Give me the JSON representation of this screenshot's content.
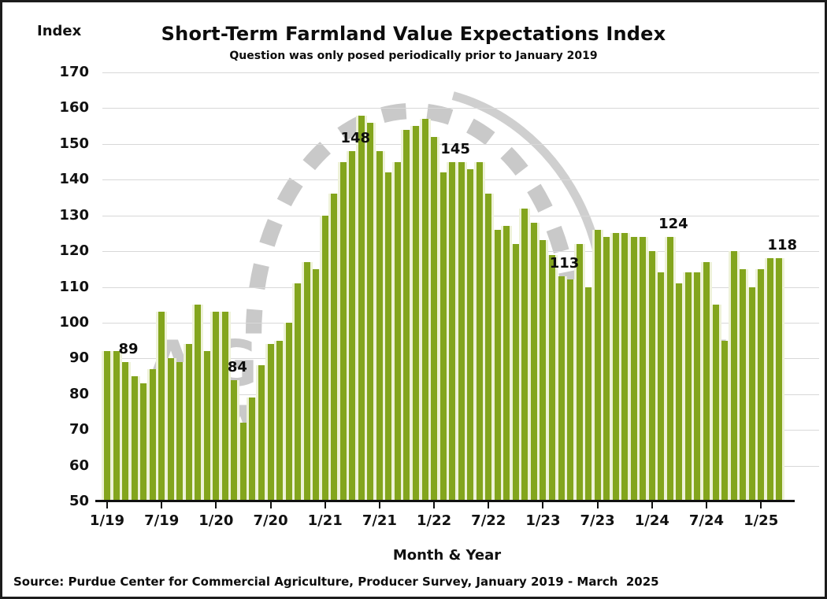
{
  "title": "Short-Term Farmland Value Expectations Index",
  "subtitle": "Question was only posed periodically prior to January 2019",
  "y_axis": {
    "label": "Index",
    "min": 50,
    "max": 170,
    "ticks": [
      170,
      160,
      150,
      140,
      130,
      120,
      110,
      100,
      90,
      80,
      70,
      60,
      50
    ]
  },
  "x_axis": {
    "label": "Month & Year",
    "tick_labels": [
      "1/19",
      "7/19",
      "1/20",
      "7/20",
      "1/21",
      "7/21",
      "1/22",
      "7/22",
      "1/23",
      "7/23",
      "1/24",
      "7/24",
      "1/25"
    ],
    "tick_month_indices": [
      0,
      6,
      12,
      18,
      24,
      30,
      36,
      42,
      48,
      54,
      60,
      66,
      72
    ]
  },
  "source": "Source: Purdue Center for Commercial Agriculture, Producer Survey, January 2019 - March  2025",
  "watermark": {
    "line1": "AG ECONOMY",
    "line2": "BAROMETER"
  },
  "colors": {
    "bar": "#83a51d",
    "grid": "#d8d8d8",
    "axis": "#111111",
    "watermark": "#c9c9c9",
    "text": "#0d0d0d"
  },
  "chart_data": {
    "type": "bar",
    "title": "Short-Term Farmland Value Expectations Index",
    "xlabel": "Month & Year",
    "ylabel": "Index",
    "ylim": [
      50,
      170
    ],
    "grid": true,
    "categories": [
      "1/19",
      "2/19",
      "3/19",
      "4/19",
      "5/19",
      "6/19",
      "7/19",
      "8/19",
      "9/19",
      "10/19",
      "11/19",
      "12/19",
      "1/20",
      "2/20",
      "3/20",
      "4/20",
      "5/20",
      "6/20",
      "7/20",
      "8/20",
      "9/20",
      "10/20",
      "11/20",
      "12/20",
      "1/21",
      "2/21",
      "3/21",
      "4/21",
      "5/21",
      "6/21",
      "7/21",
      "8/21",
      "9/21",
      "10/21",
      "11/21",
      "12/21",
      "1/22",
      "2/22",
      "3/22",
      "4/22",
      "5/22",
      "6/22",
      "7/22",
      "8/22",
      "9/22",
      "10/22",
      "11/22",
      "12/22",
      "1/23",
      "2/23",
      "3/23",
      "4/23",
      "5/23",
      "6/23",
      "7/23",
      "8/23",
      "9/23",
      "10/23",
      "11/23",
      "12/23",
      "1/24",
      "2/24",
      "3/24",
      "4/24",
      "5/24",
      "6/24",
      "7/24",
      "8/24",
      "9/24",
      "10/24",
      "11/24",
      "12/24",
      "1/25",
      "2/25",
      "3/25"
    ],
    "values": [
      92,
      92,
      89,
      85,
      83,
      87,
      103,
      90,
      89,
      94,
      105,
      92,
      103,
      103,
      84,
      72,
      79,
      88,
      94,
      95,
      100,
      111,
      117,
      115,
      130,
      136,
      145,
      148,
      158,
      156,
      148,
      142,
      145,
      154,
      155,
      157,
      152,
      142,
      145,
      145,
      143,
      145,
      136,
      126,
      127,
      122,
      132,
      128,
      123,
      119,
      113,
      112,
      122,
      110,
      126,
      124,
      125,
      125,
      124,
      124,
      120,
      114,
      124,
      111,
      114,
      114,
      117,
      105,
      95,
      120,
      115,
      110,
      115,
      118,
      118
    ],
    "labeled_points": [
      {
        "month": "3/19",
        "value": 89
      },
      {
        "month": "3/20",
        "value": 84
      },
      {
        "month": "4/21",
        "value": 148
      },
      {
        "month": "3/22",
        "value": 145
      },
      {
        "month": "3/23",
        "value": 113
      },
      {
        "month": "3/24",
        "value": 124
      },
      {
        "month": "3/25",
        "value": 118
      }
    ]
  }
}
